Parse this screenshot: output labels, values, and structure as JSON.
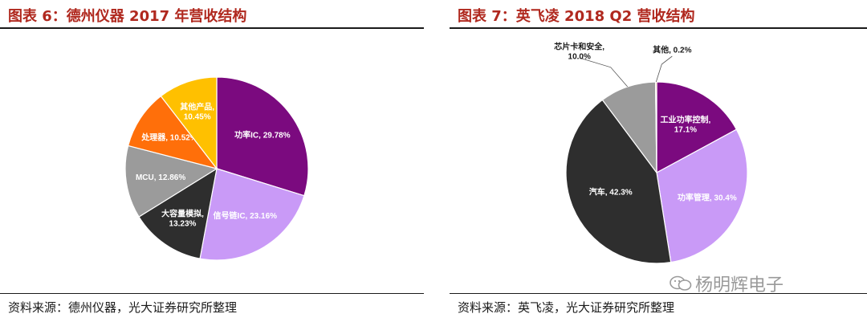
{
  "left": {
    "title": "图表 6：德州仪器 2017 年营收结构",
    "source": "资料来源：德州仪器，光大证券研究所整理"
  },
  "right": {
    "title": "图表 7：英飞凌 2018 Q2 营收结构",
    "source": "资料来源：英飞凌，光大证券研究所整理"
  },
  "watermark": "杨明辉电子",
  "chart_data": [
    {
      "type": "pie",
      "title": "图表 6：德州仪器 2017 年营收结构",
      "slices": [
        {
          "label": "功率IC, 29.78%",
          "name": "功率IC",
          "value": 29.78,
          "color": "#7b0a7f"
        },
        {
          "label": "信号链IC, 23.16%",
          "name": "信号链IC",
          "value": 23.16,
          "color": "#c99af7"
        },
        {
          "label": "大容量模拟, 13.23%",
          "name": "大容量模拟",
          "value": 13.23,
          "color": "#2e2e2e"
        },
        {
          "label": "MCU, 12.86%",
          "name": "MCU",
          "value": 12.86,
          "color": "#9b9b9b"
        },
        {
          "label": "处理器, 10.52%",
          "name": "处理器",
          "value": 10.52,
          "color": "#ff6f0a"
        },
        {
          "label": "其他产品, 10.45%",
          "name": "其他产品",
          "value": 10.45,
          "color": "#ffc000"
        }
      ]
    },
    {
      "type": "pie",
      "title": "图表 7：英飞凌 2018 Q2 营收结构",
      "slices": [
        {
          "label": "工业功率控制, 17.1%",
          "name": "工业功率控制",
          "value": 17.1,
          "color": "#7b0a7f"
        },
        {
          "label": "功率管理, 30.4%",
          "name": "功率管理",
          "value": 30.4,
          "color": "#c99af7"
        },
        {
          "label": "汽车, 42.3%",
          "name": "汽车",
          "value": 42.3,
          "color": "#2e2e2e"
        },
        {
          "label": "芯片卡和安全, 10.0%",
          "name": "芯片卡和安全",
          "value": 10.0,
          "color": "#9b9b9b"
        },
        {
          "label": "其他, 0.2%",
          "name": "其他",
          "value": 0.2,
          "color": "#ff6f0a"
        }
      ]
    }
  ]
}
